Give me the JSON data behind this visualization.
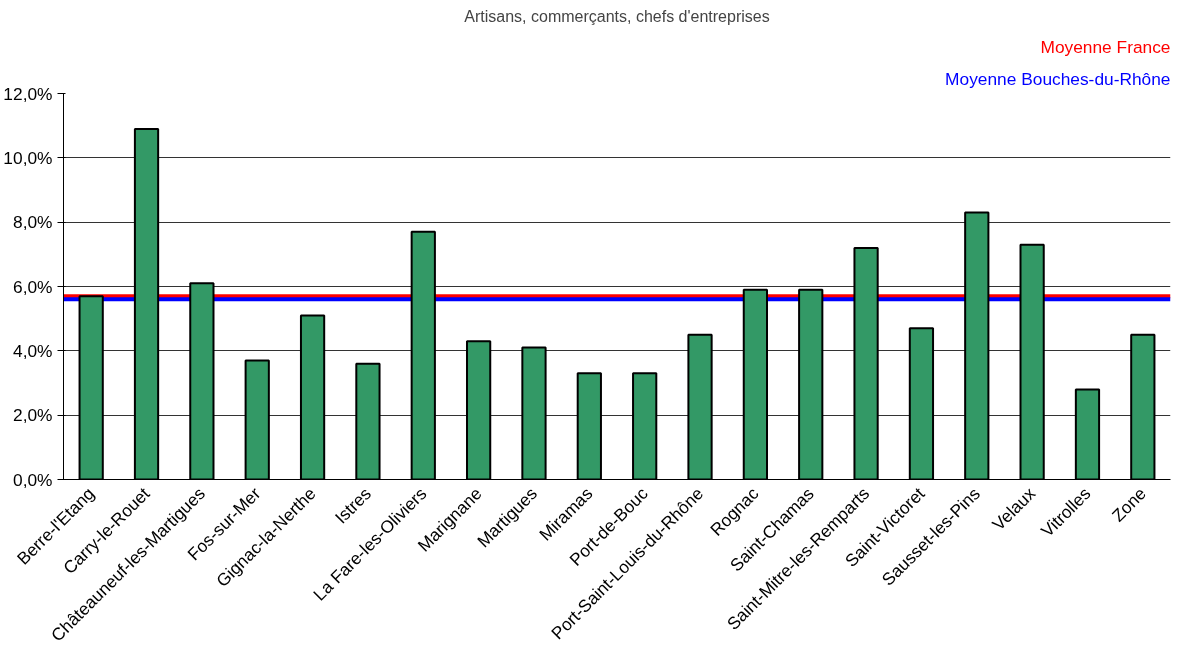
{
  "chart_data": {
    "type": "bar",
    "title": "Artisans, commerçants, chefs d'entreprises",
    "categories": [
      "Berre-l'Etang",
      "Carry-le-Rouet",
      "Châteauneuf-les-Martigues",
      "Fos-sur-Mer",
      "Gignac-la-Nerthe",
      "Istres",
      "La Fare-les-Oliviers",
      "Marignane",
      "Martigues",
      "Miramas",
      "Port-de-Bouc",
      "Port-Saint-Louis-du-Rhône",
      "Rognac",
      "Saint-Chamas",
      "Saint-Mitre-les-Remparts",
      "Saint-Victoret",
      "Sausset-les-Pins",
      "Velaux",
      "Vitrolles",
      "Zone"
    ],
    "values": [
      5.7,
      10.9,
      6.1,
      3.7,
      5.1,
      3.6,
      7.7,
      4.3,
      4.1,
      3.3,
      3.3,
      4.5,
      5.9,
      5.9,
      7.2,
      4.7,
      8.3,
      7.3,
      2.8,
      4.5
    ],
    "color": "#339966",
    "ylim": [
      0,
      12
    ],
    "yticks": [
      {
        "value": 0,
        "label": "0,0%"
      },
      {
        "value": 2,
        "label": "2,0%"
      },
      {
        "value": 4,
        "label": "4,0%"
      },
      {
        "value": 6,
        "label": "6,0%"
      },
      {
        "value": 8,
        "label": "8,0%"
      },
      {
        "value": 10,
        "label": "10,0%"
      },
      {
        "value": 12,
        "label": "12,0%"
      }
    ],
    "grid": "y",
    "ref_lines": [
      {
        "axis": "y",
        "value": 5.7,
        "label": "Moyenne France",
        "color": "#ff0000"
      },
      {
        "axis": "y",
        "value": 5.6,
        "label": "Moyenne Bouches-du-Rhône",
        "color": "#0000ff"
      }
    ]
  }
}
